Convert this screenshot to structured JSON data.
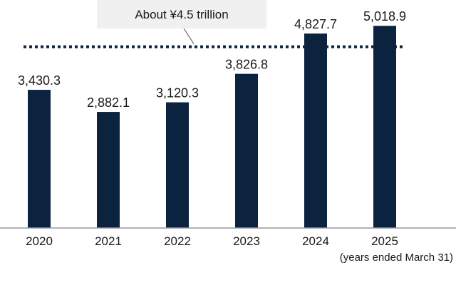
{
  "chart_data": {
    "type": "bar",
    "categories": [
      "2020",
      "2021",
      "2022",
      "2023",
      "2024",
      "2025"
    ],
    "values": [
      3430.3,
      2882.1,
      3120.3,
      3826.8,
      4827.7,
      5018.9
    ],
    "value_labels": [
      "3,430.3",
      "2,882.1",
      "3,120.3",
      "3,826.8",
      "4,827.7",
      "5,018.9"
    ],
    "title": "",
    "xlabel": "",
    "ylabel": "",
    "x_note": "(years ended March 31)",
    "ylim": [
      0,
      5660
    ],
    "grid": false,
    "bar_color": "#0c2340",
    "reference_line": {
      "value": 4500,
      "label": "About ¥4.5 trillion",
      "style": "dotted",
      "color": "#0c2340"
    }
  }
}
